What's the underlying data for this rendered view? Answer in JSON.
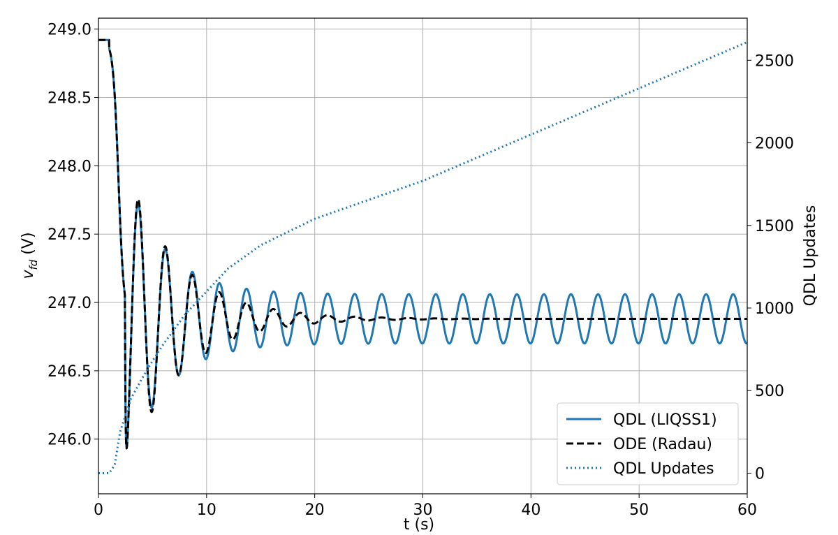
{
  "chart_data": {
    "type": "line",
    "xlabel": "t (s)",
    "ylabel_main": "v",
    "ylabel_sub": "fd",
    "ylabel_unit": " (V)",
    "y2label": "QDL Updates",
    "xlim": [
      0,
      60
    ],
    "ylim": [
      245.6,
      249.08
    ],
    "y2lim": [
      -125,
      2755
    ],
    "x_ticks": [
      0,
      10,
      20,
      30,
      40,
      50,
      60
    ],
    "x_tick_labels": [
      "0",
      "10",
      "20",
      "30",
      "40",
      "50",
      "60"
    ],
    "y_ticks": [
      246.0,
      246.5,
      247.0,
      247.5,
      248.0,
      248.5,
      249.0
    ],
    "y_tick_labels": [
      "246.0",
      "246.5",
      "247.0",
      "247.5",
      "248.0",
      "248.5",
      "249.0"
    ],
    "y2_ticks": [
      0,
      500,
      1000,
      1500,
      2000,
      2500
    ],
    "y2_tick_labels": [
      "0",
      "500",
      "1000",
      "1500",
      "2000",
      "2500"
    ],
    "grid": true,
    "legend_position": "bottom-right",
    "series": [
      {
        "name": "QDL (LIQSS1)",
        "axis": "left",
        "style": "solid",
        "color": "#1f77b4",
        "model": {
          "type": "sim",
          "initial": 248.92,
          "step_start": 1.0,
          "drop_center": 1.85,
          "drop_width": 0.25,
          "drop_depth": 2.04,
          "steady": 246.88,
          "period": 2.5,
          "tmin_phase": 2.45,
          "amp_init": 1.12,
          "amp_final": 0.18,
          "decay": 0.28
        }
      },
      {
        "name": "ODE (Radau)",
        "axis": "left",
        "style": "dashed",
        "color": "#000000",
        "model": {
          "type": "sim",
          "initial": 248.92,
          "step_start": 1.0,
          "drop_center": 1.85,
          "drop_width": 0.25,
          "drop_depth": 2.04,
          "steady": 246.88,
          "period": 2.5,
          "tmin_phase": 2.45,
          "amp_init": 1.12,
          "amp_final": 0,
          "decay": 0.2
        }
      },
      {
        "name": "QDL Updates",
        "axis": "right",
        "style": "dotted",
        "color": "#1f77b4",
        "x": [
          0,
          1.0,
          1.5,
          2.0,
          3.0,
          4.0,
          5.0,
          6.0,
          8.0,
          10.0,
          12.0,
          15.0,
          20.0,
          30.0,
          40.0,
          50.0,
          60.0
        ],
        "y": [
          0,
          0,
          50,
          250,
          450,
          570,
          680,
          780,
          960,
          1100,
          1240,
          1380,
          1540,
          1770,
          2050,
          2330,
          2610
        ]
      }
    ]
  }
}
